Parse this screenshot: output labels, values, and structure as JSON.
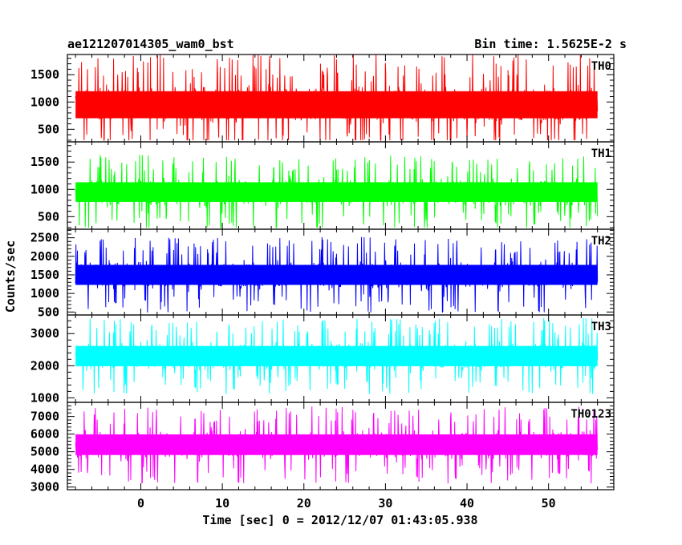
{
  "chart_data": {
    "type": "line",
    "title": "ae121207014305_wam0_bst",
    "subtitle": "Bin time: 1.5625E-2 s",
    "xlabel": "Time [sec] 0 = 2012/12/07 01:43:05.938",
    "ylabel": "Counts/sec",
    "xlim": [
      -9,
      58
    ],
    "xticks": [
      0,
      10,
      20,
      30,
      40,
      50
    ],
    "data_range_x": [
      -8,
      56
    ],
    "bin_time_s": 0.015625,
    "grid": false,
    "legend": "none",
    "panels": [
      {
        "name": "TH0",
        "color": "#ff0000",
        "ylim": [
          270,
          1870
        ],
        "yticks": [
          500,
          1000,
          1500
        ],
        "mean": 950,
        "amplitude": 550,
        "min": 300,
        "max": 1870
      },
      {
        "name": "TH1",
        "color": "#00ff00",
        "ylim": [
          270,
          1870
        ],
        "yticks": [
          500,
          1000,
          1500
        ],
        "mean": 950,
        "amplitude": 400,
        "min": 300,
        "max": 1870
      },
      {
        "name": "TH2",
        "color": "#0000ff",
        "ylim": [
          420,
          2730
        ],
        "yticks": [
          500,
          1000,
          1500,
          2000,
          2500
        ],
        "mean": 1500,
        "amplitude": 600,
        "min": 450,
        "max": 2730
      },
      {
        "name": "TH3",
        "color": "#00ffff",
        "ylim": [
          860,
          3580
        ],
        "yticks": [
          1000,
          2000,
          3000
        ],
        "mean": 2300,
        "amplitude": 700,
        "min": 1000,
        "max": 3580
      },
      {
        "name": "TH0123",
        "color": "#ff00ff",
        "ylim": [
          2850,
          7800
        ],
        "yticks": [
          3000,
          4000,
          5000,
          6000,
          7000
        ],
        "mean": 5400,
        "amplitude": 1300,
        "min": 2900,
        "max": 7800
      }
    ]
  }
}
